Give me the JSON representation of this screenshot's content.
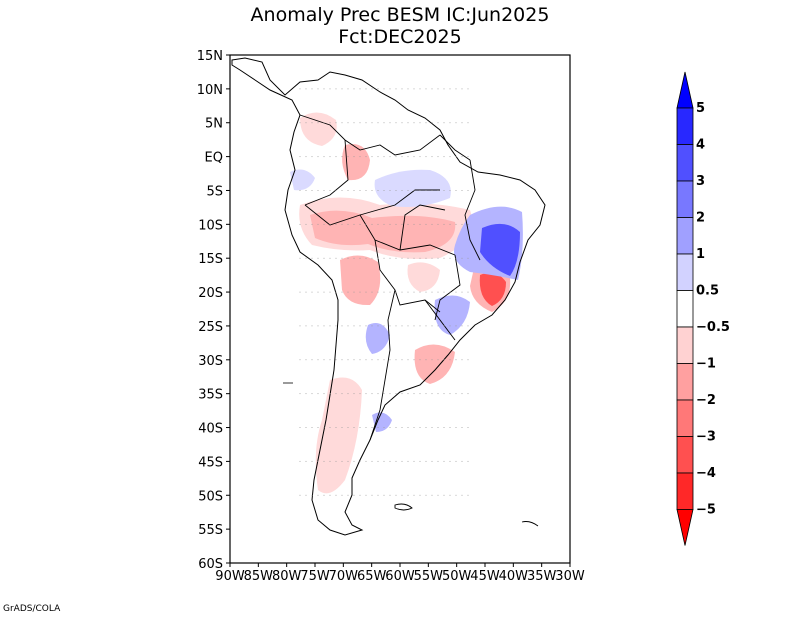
{
  "title": {
    "line1": "Anomaly Prec BESM IC:Jun2025",
    "line2": "Fct:DEC2025"
  },
  "map": {
    "lat_ticks": [
      "15N",
      "10N",
      "5N",
      "EQ",
      "5S",
      "10S",
      "15S",
      "20S",
      "25S",
      "30S",
      "35S",
      "40S",
      "45S",
      "50S",
      "55S",
      "60S"
    ],
    "lon_ticks": [
      "90W",
      "85W",
      "80W",
      "75W",
      "70W",
      "65W",
      "60W",
      "55W",
      "50W",
      "45W",
      "40W",
      "35W",
      "30W"
    ],
    "lat_range": [
      -60,
      15
    ],
    "lon_range": [
      -90,
      -30
    ],
    "anomalies": [
      {
        "region": "Northern Colombia / Venezuela",
        "category": -0.75,
        "color": "#ffdada"
      },
      {
        "region": "Northwest Amazon",
        "category": -1.5,
        "color": "#ffb4b4"
      },
      {
        "region": "Peru / Western Amazon",
        "category": -1.5,
        "color": "#ffb4b4"
      },
      {
        "region": "Bolivia / Central Brazil",
        "category": -1.5,
        "color": "#ffb4b4"
      },
      {
        "region": "Northern Argentina",
        "category": -1.5,
        "color": "#ffb4b4"
      },
      {
        "region": "Central Chile / Patagonia",
        "category": -0.75,
        "color": "#ffdada"
      },
      {
        "region": "Southern Brazil / Uruguay",
        "category": -1.5,
        "color": "#ffb4b4"
      },
      {
        "region": "Southeast Brazil",
        "category": -3.5,
        "color": "#ff5050"
      },
      {
        "region": "Eastern Brazil (Bahia)",
        "category": 3.5,
        "color": "#5050ff"
      },
      {
        "region": "Northeast Amazon",
        "category": 0.75,
        "color": "#dadaff"
      },
      {
        "region": "Paraguay / Parana",
        "category": 1.5,
        "color": "#b4b4ff"
      },
      {
        "region": "Northern Argentina east",
        "category": 1.5,
        "color": "#b4b4ff"
      },
      {
        "region": "Southern Andes",
        "category": 1.5,
        "color": "#b4b4ff"
      }
    ]
  },
  "colorbar": {
    "labels": [
      "5",
      "4",
      "3",
      "2",
      "1",
      "0.5",
      "−0.5",
      "−1",
      "−2",
      "−3",
      "−4",
      "−5"
    ],
    "colors": [
      "#0000ff",
      "#2828ff",
      "#5050ff",
      "#7878ff",
      "#a0a0ff",
      "#d2d2ff",
      "#ffffff",
      "#ffd2d2",
      "#ffa0a0",
      "#ff7878",
      "#ff5050",
      "#ff2828",
      "#ff0000"
    ]
  },
  "credit": "GrADS/COLA"
}
